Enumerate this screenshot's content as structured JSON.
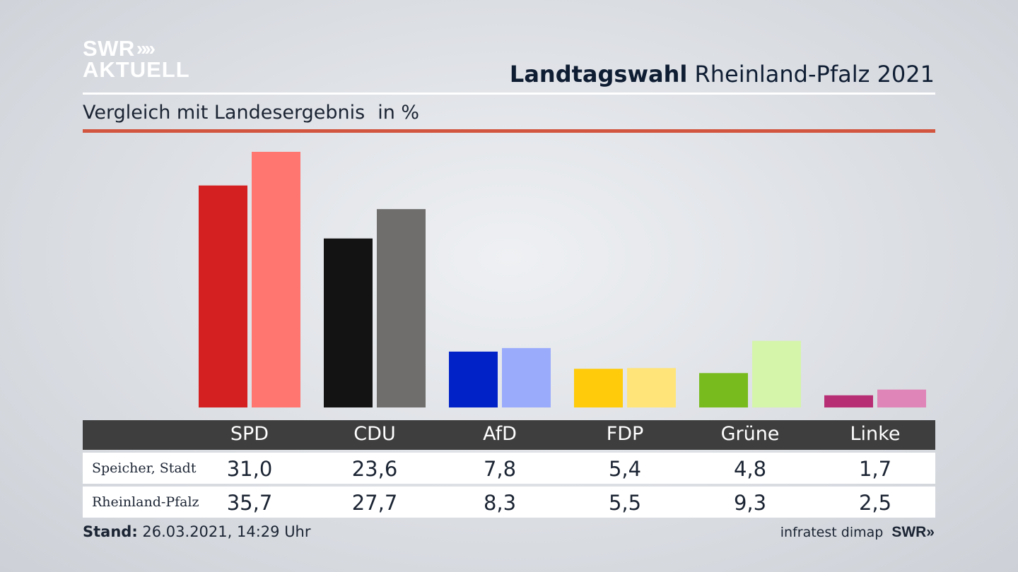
{
  "logo": {
    "line1": "SWR",
    "chevrons": "»",
    "line2": "AKTUELL"
  },
  "header": {
    "title_bold": "Landtagswahl",
    "title_rest": "Rheinland-Pfalz 2021"
  },
  "subtitle": {
    "text": "Vergleich mit Landesergebnis",
    "unit": "in %"
  },
  "footer": {
    "stand_label": "Stand:",
    "stand_value": "26.03.2021, 14:29 Uhr",
    "source": "infratest dimap",
    "brand": "SWR»"
  },
  "colors": {
    "SPD": [
      "#d42020",
      "#ff7570"
    ],
    "CDU": [
      "#131313",
      "#6f6e6c"
    ],
    "AfD": [
      "#0022c7",
      "#9aabfb"
    ],
    "FDP": [
      "#ffcb0a",
      "#ffe47a"
    ],
    "Grüne": [
      "#78bb1e",
      "#d5f5aa"
    ],
    "Linke": [
      "#b82e75",
      "#e085b7"
    ]
  },
  "chart_data": {
    "type": "bar",
    "categories": [
      "SPD",
      "CDU",
      "AfD",
      "FDP",
      "Grüne",
      "Linke"
    ],
    "series": [
      {
        "name": "Speicher, Stadt",
        "values": [
          31.0,
          23.6,
          7.8,
          5.4,
          4.8,
          1.7
        ]
      },
      {
        "name": "Rheinland-Pfalz",
        "values": [
          35.7,
          27.7,
          8.3,
          5.5,
          9.3,
          2.5
        ]
      }
    ],
    "value_labels": [
      [
        "31,0",
        "23,6",
        "7,8",
        "5,4",
        "4,8",
        "1,7"
      ],
      [
        "35,7",
        "27,7",
        "8,3",
        "5,5",
        "9,3",
        "2,5"
      ]
    ],
    "ylim": [
      0,
      36
    ],
    "grid": false
  }
}
